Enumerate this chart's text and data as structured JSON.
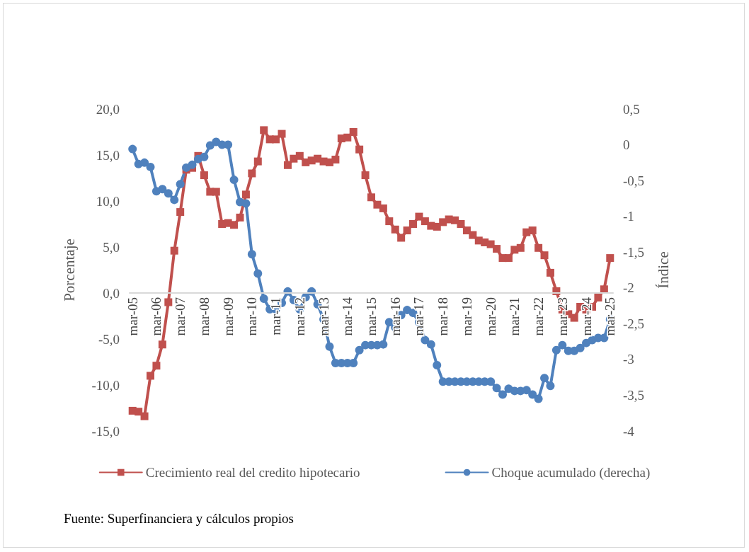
{
  "chart_data": {
    "type": "line",
    "ylabel": "Porcentaje",
    "y2label": "Índice",
    "categories": [
      "mar-05",
      null,
      null,
      null,
      "mar-06",
      null,
      null,
      null,
      "mar-07",
      null,
      null,
      null,
      "mar-08",
      null,
      null,
      null,
      "mar-09",
      null,
      null,
      null,
      "mar-10",
      null,
      null,
      null,
      "mar-11",
      null,
      null,
      null,
      "mar-12",
      null,
      null,
      null,
      "mar-13",
      null,
      null,
      null,
      "mar-14",
      null,
      null,
      null,
      "mar-15",
      null,
      null,
      null,
      "mar-16",
      null,
      null,
      null,
      "mar-17",
      null,
      null,
      null,
      "mar-18",
      null,
      null,
      null,
      "mar-19",
      null,
      null,
      null,
      "mar-20",
      null,
      null,
      null,
      "mar-21",
      null,
      null,
      null,
      "mar-22",
      null,
      null,
      null,
      "mar-23",
      null,
      null,
      null,
      "mar-24",
      null,
      null,
      null,
      "mar-25"
    ],
    "series": [
      {
        "name": "Crecimiento real del credito hipotecario",
        "color": "#c0504d",
        "marker": "square",
        "values": [
          -12.8,
          -12.9,
          -13.4,
          -9.0,
          -7.9,
          -5.6,
          -1.0,
          4.6,
          8.8,
          13.4,
          13.6,
          14.9,
          12.8,
          11.0,
          11.0,
          7.5,
          7.6,
          7.4,
          8.2,
          10.7,
          13.0,
          14.3,
          17.7,
          16.7,
          16.7,
          17.3,
          13.9,
          14.6,
          14.9,
          14.2,
          14.4,
          14.6,
          14.3,
          14.2,
          14.5,
          16.8,
          16.9,
          17.5,
          15.6,
          12.8,
          10.4,
          9.6,
          9.2,
          7.8,
          6.9,
          6.0,
          6.8,
          7.5,
          8.3,
          7.8,
          7.3,
          7.2,
          7.7,
          8.0,
          7.9,
          7.5,
          6.8,
          6.3,
          5.7,
          5.5,
          5.3,
          4.8,
          3.8,
          3.8,
          4.7,
          4.9,
          6.6,
          6.8,
          4.9,
          4.1,
          2.2,
          0.2,
          -1.8,
          -2.3,
          -2.7,
          -1.5,
          -1.8,
          -1.5,
          -0.5,
          0.4,
          3.8
        ]
      },
      {
        "name": "Choque acumulado (derecha)",
        "color": "#4f81bd",
        "marker": "circle",
        "axis": "y2",
        "values": [
          -0.06,
          -0.27,
          -0.25,
          -0.31,
          -0.65,
          -0.62,
          -0.68,
          -0.77,
          -0.55,
          -0.32,
          -0.28,
          -0.2,
          -0.17,
          -0.01,
          0.04,
          0.0,
          0.0,
          -0.49,
          -0.8,
          -0.82,
          -1.53,
          -1.8,
          -2.15,
          -2.3,
          -2.3,
          -2.21,
          -2.05,
          -2.17,
          -2.3,
          -2.13,
          -2.05,
          -2.23,
          -2.44,
          -2.82,
          -3.05,
          -3.05,
          -3.05,
          -3.05,
          -2.87,
          -2.8,
          -2.8,
          -2.8,
          -2.79,
          -2.48,
          -2.55,
          -2.38,
          -2.31,
          -2.35,
          -2.48,
          -2.73,
          -2.79,
          -3.08,
          -3.31,
          -3.31,
          -3.31,
          -3.31,
          -3.31,
          -3.31,
          -3.31,
          -3.31,
          -3.31,
          -3.4,
          -3.49,
          -3.41,
          -3.44,
          -3.44,
          -3.43,
          -3.49,
          -3.55,
          -3.26,
          -3.37,
          -2.87,
          -2.8,
          -2.88,
          -2.88,
          -2.84,
          -2.77,
          -2.73,
          -2.7,
          -2.7,
          -2.44
        ]
      }
    ],
    "ylim": [
      -15,
      20
    ],
    "yticks": [
      {
        "value": -15,
        "label": "-15,0"
      },
      {
        "value": -10,
        "label": "-10,0"
      },
      {
        "value": -5,
        "label": "-5,0"
      },
      {
        "value": 0,
        "label": "0,0"
      },
      {
        "value": 5,
        "label": "5,0"
      },
      {
        "value": 10,
        "label": "10,0"
      },
      {
        "value": 15,
        "label": "15,0"
      },
      {
        "value": 20,
        "label": "20,0"
      }
    ],
    "y2lim": [
      -4,
      0.5
    ],
    "y2ticks": [
      -4,
      {
        "value": -3.5,
        "label": "-3,5"
      },
      -3,
      {
        "value": -2.5,
        "label": "-2,5"
      },
      -2,
      {
        "value": -1.5,
        "label": "-1,5"
      },
      -1,
      {
        "value": -0.5,
        "label": "-0,5"
      },
      0,
      {
        "value": 0.5,
        "label": "0,5"
      }
    ],
    "grid": false,
    "legend": "bottom",
    "line_style": "solid",
    "annotations": [
      "Fuente: Superfinanciera y cálculos propios"
    ]
  }
}
